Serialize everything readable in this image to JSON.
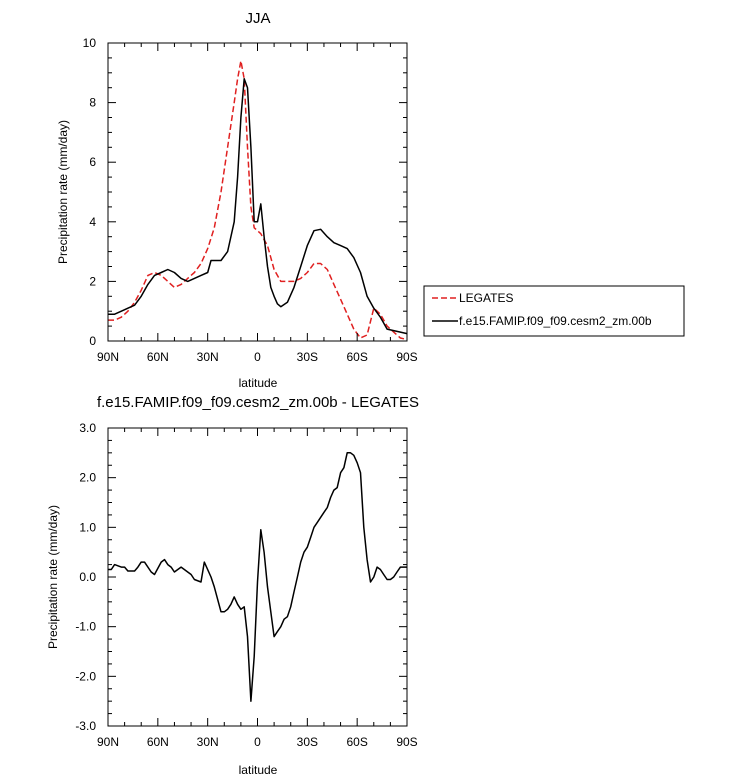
{
  "chart_data": [
    {
      "type": "line",
      "title": "JJA",
      "xlabel": "latitude",
      "ylabel": "Precipitation rate (mm/day)",
      "xlim": [
        90,
        -90
      ],
      "ylim": [
        0,
        10
      ],
      "x_ticks": [
        {
          "value": 90,
          "label": "90N"
        },
        {
          "value": 60,
          "label": "60N"
        },
        {
          "value": 30,
          "label": "30N"
        },
        {
          "value": 0,
          "label": "0"
        },
        {
          "value": -30,
          "label": "30S"
        },
        {
          "value": -60,
          "label": "60S"
        },
        {
          "value": -90,
          "label": "90S"
        }
      ],
      "y_ticks": [
        {
          "value": 0,
          "label": "0"
        },
        {
          "value": 2,
          "label": "2"
        },
        {
          "value": 4,
          "label": "4"
        },
        {
          "value": 6,
          "label": "6"
        },
        {
          "value": 8,
          "label": "8"
        },
        {
          "value": 10,
          "label": "10"
        }
      ],
      "legend_position": "right",
      "series": [
        {
          "name": "LEGATES",
          "color": "#e02020",
          "dash": "dashed",
          "x": [
            90,
            86,
            82,
            78,
            74,
            70,
            66,
            62,
            58,
            54,
            50,
            46,
            42,
            38,
            34,
            30,
            26,
            22,
            18,
            14,
            12,
            10,
            8,
            6,
            4,
            2,
            0,
            -2,
            -4,
            -6,
            -8,
            -10,
            -14,
            -18,
            -22,
            -26,
            -30,
            -34,
            -38,
            -42,
            -46,
            -50,
            -54,
            -58,
            -62,
            -66,
            -70,
            -74,
            -78,
            -82,
            -86,
            -90
          ],
          "y": [
            0.7,
            0.7,
            0.8,
            1.0,
            1.3,
            1.7,
            2.2,
            2.3,
            2.2,
            2.0,
            1.8,
            1.9,
            2.1,
            2.3,
            2.6,
            3.1,
            3.8,
            5.0,
            6.5,
            8.0,
            8.8,
            9.4,
            8.8,
            6.5,
            4.5,
            3.8,
            3.7,
            3.6,
            3.4,
            3.2,
            2.8,
            2.4,
            2.0,
            2.0,
            2.0,
            2.1,
            2.3,
            2.6,
            2.6,
            2.4,
            1.9,
            1.4,
            0.9,
            0.4,
            0.1,
            0.2,
            1.1,
            0.9,
            0.5,
            0.3,
            0.1,
            0.05
          ]
        },
        {
          "name": "f.e15.FAMIP.f09_f09.cesm2_zm.00b",
          "color": "#000000",
          "dash": "solid",
          "x": [
            90,
            86,
            82,
            78,
            74,
            70,
            66,
            62,
            58,
            54,
            50,
            46,
            42,
            38,
            34,
            30,
            28,
            26,
            22,
            18,
            14,
            12,
            10,
            8,
            6,
            4,
            2,
            0,
            -2,
            -4,
            -6,
            -8,
            -10,
            -12,
            -14,
            -18,
            -22,
            -26,
            -30,
            -34,
            -38,
            -42,
            -46,
            -50,
            -54,
            -58,
            -62,
            -66,
            -70,
            -74,
            -78,
            -82,
            -86,
            -90
          ],
          "y": [
            0.9,
            0.9,
            1.0,
            1.1,
            1.2,
            1.5,
            1.9,
            2.2,
            2.3,
            2.4,
            2.3,
            2.1,
            2.0,
            2.1,
            2.2,
            2.3,
            2.7,
            2.7,
            2.7,
            3.0,
            4.0,
            5.5,
            7.5,
            8.8,
            8.5,
            6.5,
            4.0,
            4.0,
            4.6,
            3.5,
            2.5,
            1.8,
            1.5,
            1.25,
            1.15,
            1.3,
            1.8,
            2.5,
            3.2,
            3.7,
            3.75,
            3.5,
            3.3,
            3.2,
            3.1,
            2.8,
            2.3,
            1.5,
            1.1,
            0.8,
            0.4,
            0.35,
            0.3,
            0.25
          ]
        }
      ]
    },
    {
      "type": "line",
      "title": "f.e15.FAMIP.f09_f09.cesm2_zm.00b - LEGATES",
      "xlabel": "latitude",
      "ylabel": "Precipitation rate (mm/day)",
      "xlim": [
        90,
        -90
      ],
      "ylim": [
        -3,
        3
      ],
      "x_ticks": [
        {
          "value": 90,
          "label": "90N"
        },
        {
          "value": 60,
          "label": "60N"
        },
        {
          "value": 30,
          "label": "30N"
        },
        {
          "value": 0,
          "label": "0"
        },
        {
          "value": -30,
          "label": "30S"
        },
        {
          "value": -60,
          "label": "60S"
        },
        {
          "value": -90,
          "label": "90S"
        }
      ],
      "y_ticks": [
        {
          "value": -3,
          "label": "-3.0"
        },
        {
          "value": -2,
          "label": "-2.0"
        },
        {
          "value": -1,
          "label": "-1.0"
        },
        {
          "value": 0,
          "label": "0.0"
        },
        {
          "value": 1,
          "label": "1.0"
        },
        {
          "value": 2,
          "label": "2.0"
        },
        {
          "value": 3,
          "label": "3.0"
        }
      ],
      "series": [
        {
          "color": "#000000",
          "dash": "solid",
          "x": [
            90,
            88,
            86,
            82,
            80,
            78,
            74,
            72,
            70,
            68,
            64,
            62,
            58,
            56,
            54,
            52,
            50,
            48,
            46,
            42,
            40,
            38,
            34,
            32,
            28,
            26,
            22,
            20,
            18,
            16,
            14,
            12,
            10,
            8,
            6,
            4,
            2,
            0,
            -2,
            -4,
            -6,
            -8,
            -10,
            -12,
            -14,
            -16,
            -18,
            -20,
            -22,
            -24,
            -26,
            -28,
            -30,
            -32,
            -34,
            -36,
            -38,
            -40,
            -42,
            -44,
            -46,
            -48,
            -50,
            -52,
            -54,
            -56,
            -58,
            -60,
            -62,
            -64,
            -66,
            -68,
            -70,
            -72,
            -74,
            -76,
            -78,
            -80,
            -82,
            -84,
            -86,
            -88,
            -90
          ],
          "y": [
            0.15,
            0.15,
            0.25,
            0.2,
            0.2,
            0.12,
            0.12,
            0.2,
            0.3,
            0.3,
            0.1,
            0.05,
            0.3,
            0.35,
            0.25,
            0.2,
            0.1,
            0.15,
            0.2,
            0.1,
            0.05,
            -0.05,
            -0.1,
            0.3,
            0.0,
            -0.2,
            -0.7,
            -0.7,
            -0.65,
            -0.55,
            -0.4,
            -0.55,
            -0.65,
            -0.6,
            -1.2,
            -2.5,
            -1.6,
            -0.1,
            0.95,
            0.5,
            -0.2,
            -0.7,
            -1.2,
            -1.1,
            -1.0,
            -0.85,
            -0.8,
            -0.6,
            -0.3,
            0.0,
            0.3,
            0.5,
            0.6,
            0.8,
            1.0,
            1.1,
            1.2,
            1.3,
            1.4,
            1.6,
            1.75,
            1.8,
            2.1,
            2.2,
            2.5,
            2.5,
            2.45,
            2.3,
            2.1,
            1.0,
            0.35,
            -0.1,
            0.0,
            0.2,
            0.15,
            0.05,
            -0.05,
            -0.05,
            0.0,
            0.1,
            0.2,
            0.2,
            0.2
          ]
        }
      ]
    }
  ]
}
